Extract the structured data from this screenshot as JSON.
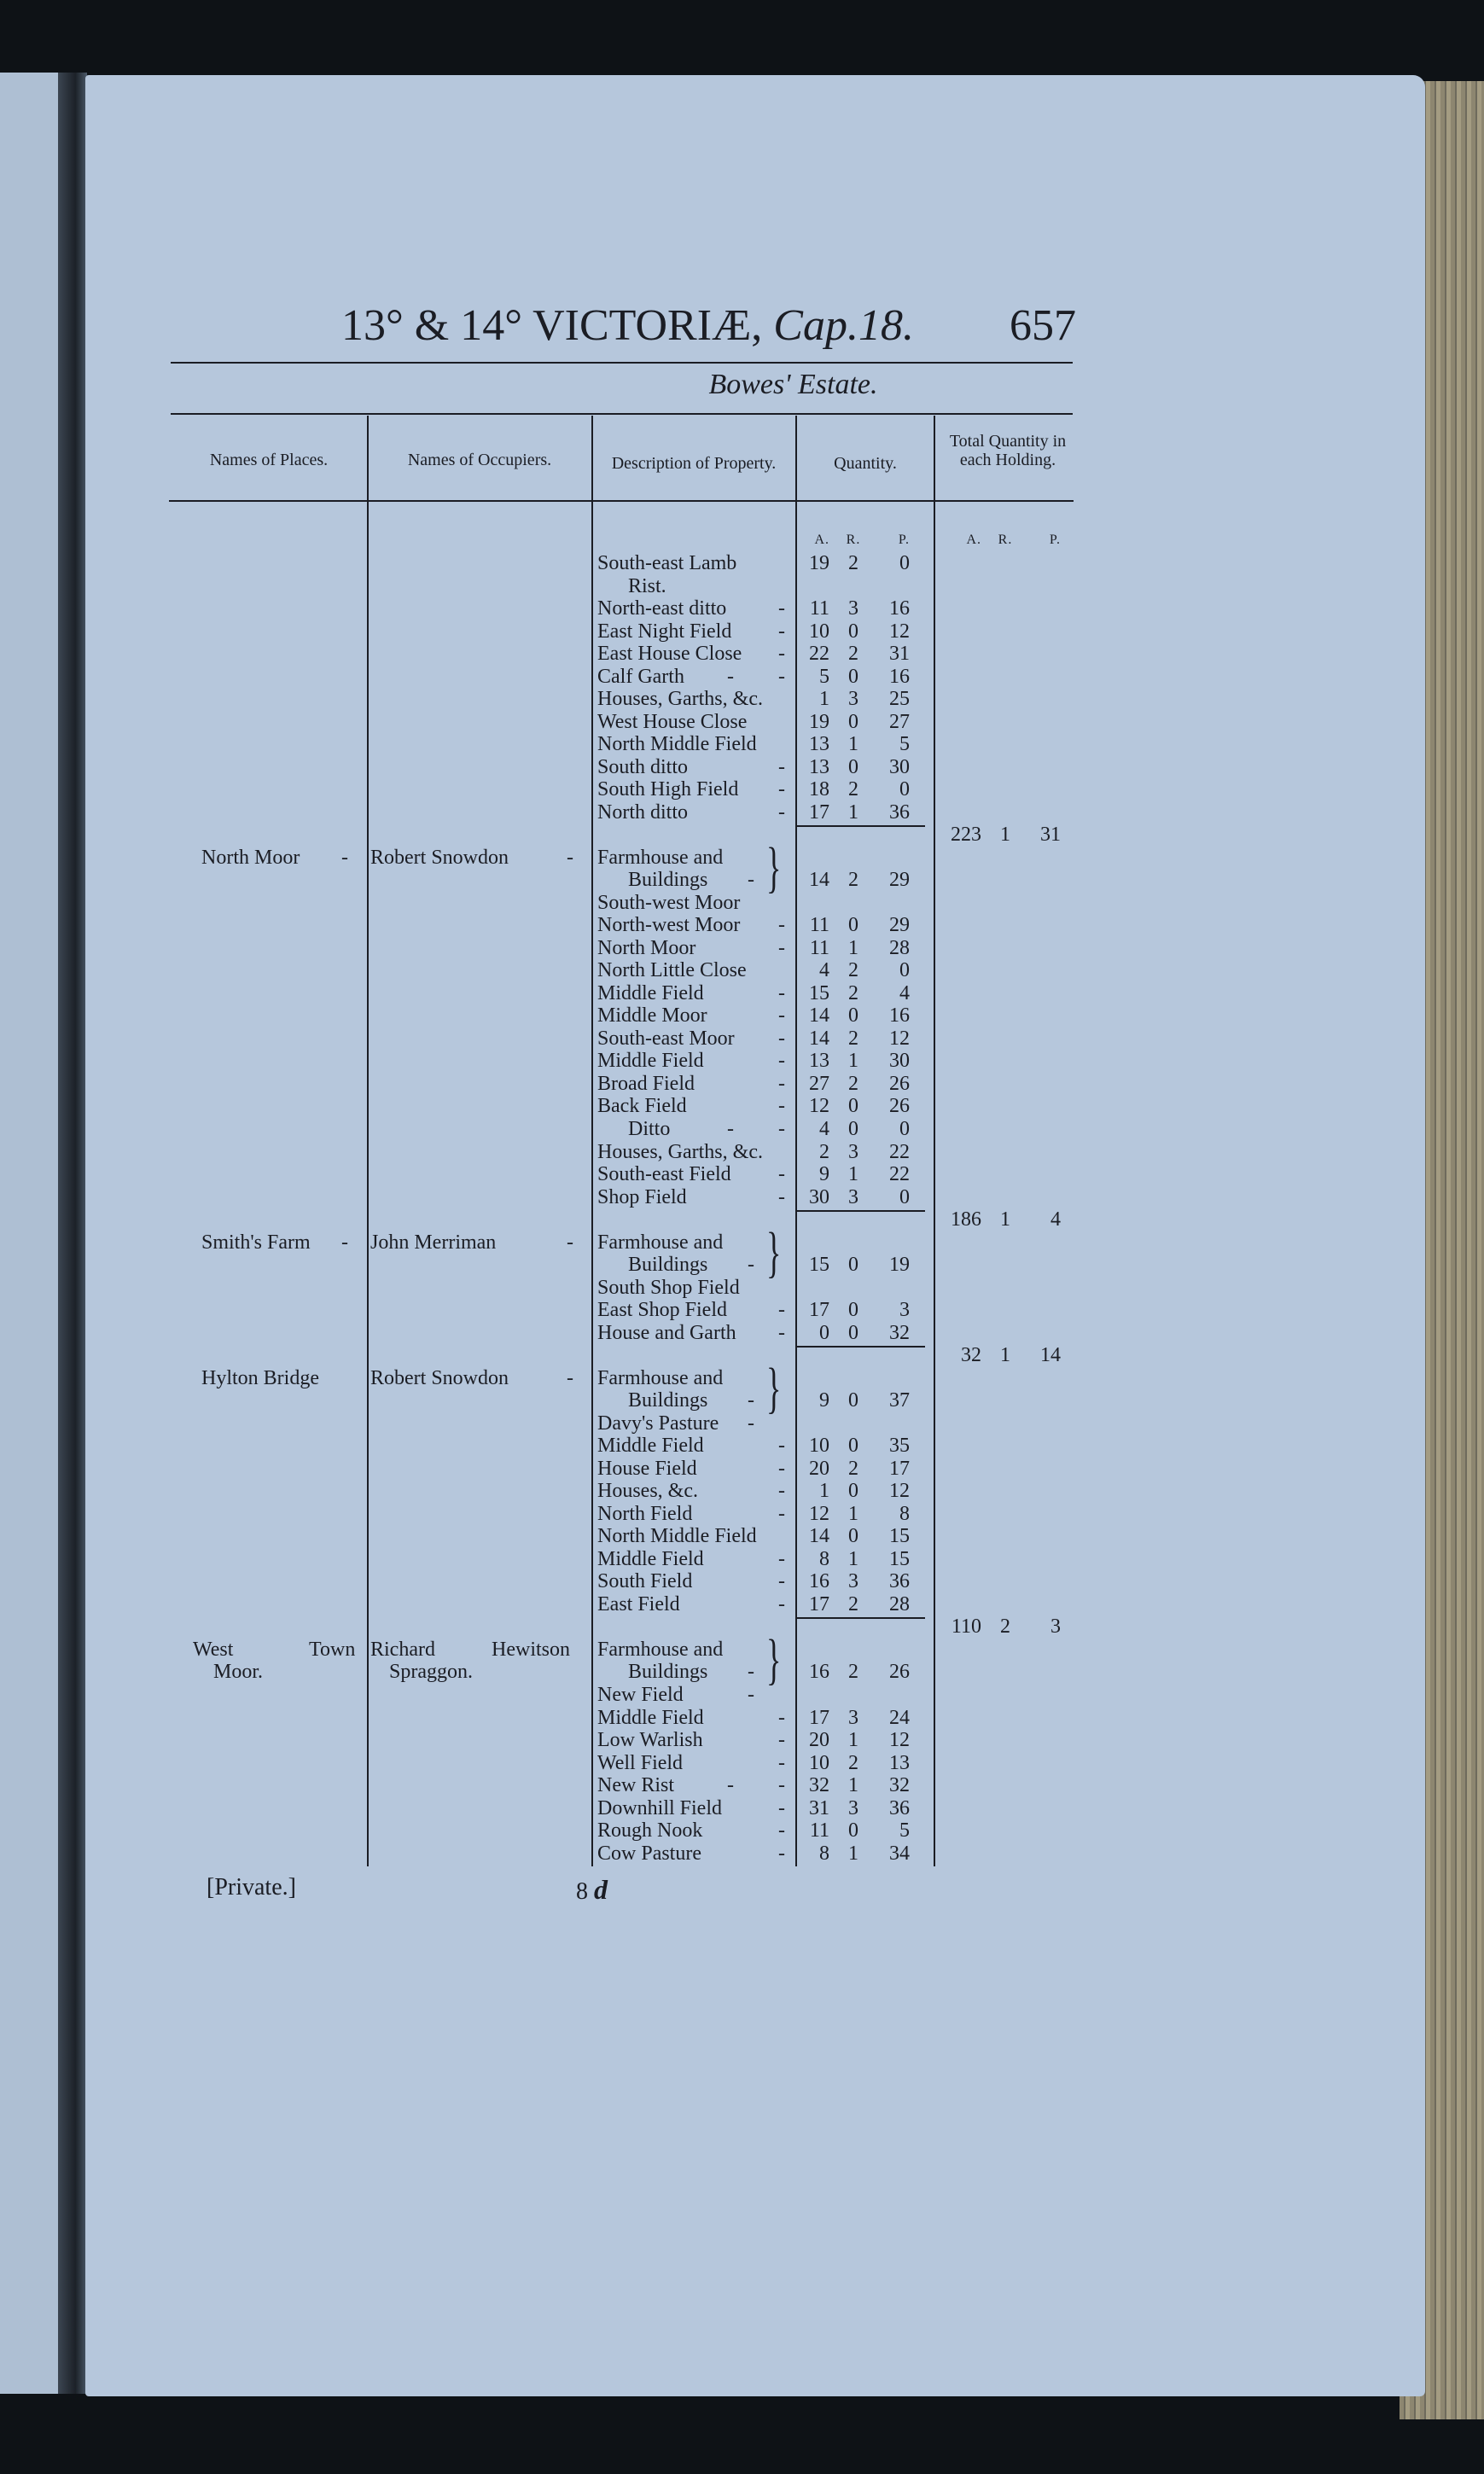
{
  "header": {
    "title_main": "13° & 14° VICTORIÆ,",
    "title_cap": "Cap.18.",
    "page_number": "657"
  },
  "estate": "Bowes' Estate.",
  "columns": {
    "places": "Names of Places.",
    "occupiers": "Names of Occupiers.",
    "description": "Description of Property.",
    "quantity": "Quantity.",
    "total": "Total Quantity in each Holding.",
    "units": [
      "A.",
      "R.",
      "P."
    ]
  },
  "holdings": [
    {
      "place": [],
      "occupier": [],
      "items": [
        {
          "desc": [
            "South-east Lamb",
            "Rist."
          ],
          "a": "19",
          "r": "2",
          "p": "0"
        },
        {
          "desc": [
            "North-east ditto -"
          ],
          "a": "11",
          "r": "3",
          "p": "16"
        },
        {
          "desc": [
            "East Night Field -"
          ],
          "a": "10",
          "r": "0",
          "p": "12"
        },
        {
          "desc": [
            "East House Close -"
          ],
          "a": "22",
          "r": "2",
          "p": "31"
        },
        {
          "desc": [
            "Calf Garth - -"
          ],
          "a": "5",
          "r": "0",
          "p": "16"
        },
        {
          "desc": [
            "Houses, Garths, &c."
          ],
          "a": "1",
          "r": "3",
          "p": "25"
        },
        {
          "desc": [
            "West House Close"
          ],
          "a": "19",
          "r": "0",
          "p": "27"
        },
        {
          "desc": [
            "North Middle Field"
          ],
          "a": "13",
          "r": "1",
          "p": "5"
        },
        {
          "desc": [
            "South ditto -"
          ],
          "a": "13",
          "r": "0",
          "p": "30"
        },
        {
          "desc": [
            "South High Field -"
          ],
          "a": "18",
          "r": "2",
          "p": "0"
        },
        {
          "desc": [
            "North ditto -"
          ],
          "a": "17",
          "r": "1",
          "p": "36"
        }
      ],
      "total": {
        "a": "223",
        "r": "1",
        "p": "31"
      }
    },
    {
      "place": [
        "North Moor -"
      ],
      "occupier": [
        "Robert Snowdon -"
      ],
      "items": [
        {
          "desc": [
            "Farmhouse and",
            "Buildings -",
            "South-west Moor"
          ],
          "bracket": true,
          "a": "14",
          "r": "2",
          "p": "29"
        },
        {
          "desc": [
            "North-west Moor -"
          ],
          "a": "11",
          "r": "0",
          "p": "29"
        },
        {
          "desc": [
            "North Moor -"
          ],
          "a": "11",
          "r": "1",
          "p": "28"
        },
        {
          "desc": [
            "North Little Close"
          ],
          "a": "4",
          "r": "2",
          "p": "0"
        },
        {
          "desc": [
            "Middle Field -"
          ],
          "a": "15",
          "r": "2",
          "p": "4"
        },
        {
          "desc": [
            "Middle Moor -"
          ],
          "a": "14",
          "r": "0",
          "p": "16"
        },
        {
          "desc": [
            "South-east Moor -"
          ],
          "a": "14",
          "r": "2",
          "p": "12"
        },
        {
          "desc": [
            "Middle Field -"
          ],
          "a": "13",
          "r": "1",
          "p": "30"
        },
        {
          "desc": [
            "Broad Field -"
          ],
          "a": "27",
          "r": "2",
          "p": "26"
        },
        {
          "desc": [
            "Back Field -"
          ],
          "a": "12",
          "r": "0",
          "p": "26"
        },
        {
          "desc": [
            "Ditto - -"
          ],
          "indent": true,
          "a": "4",
          "r": "0",
          "p": "0"
        },
        {
          "desc": [
            "Houses, Garths, &c."
          ],
          "a": "2",
          "r": "3",
          "p": "22"
        },
        {
          "desc": [
            "South-east Field -"
          ],
          "a": "9",
          "r": "1",
          "p": "22"
        },
        {
          "desc": [
            "Shop Field -"
          ],
          "a": "30",
          "r": "3",
          "p": "0"
        }
      ],
      "total": {
        "a": "186",
        "r": "1",
        "p": "4"
      }
    },
    {
      "place": [
        "Smith's Farm -"
      ],
      "occupier": [
        "John Merriman -"
      ],
      "items": [
        {
          "desc": [
            "Farmhouse and",
            "Buildings -",
            "South Shop Field"
          ],
          "bracket": true,
          "a": "15",
          "r": "0",
          "p": "19"
        },
        {
          "desc": [
            "East Shop Field -"
          ],
          "a": "17",
          "r": "0",
          "p": "3"
        },
        {
          "desc": [
            "House and Garth -"
          ],
          "a": "0",
          "r": "0",
          "p": "32"
        }
      ],
      "total": {
        "a": "32",
        "r": "1",
        "p": "14"
      }
    },
    {
      "place": [
        "Hylton Bridge"
      ],
      "occupier": [
        "Robert Snowdon -"
      ],
      "items": [
        {
          "desc": [
            "Farmhouse and",
            "Buildings -",
            "Davy's Pasture -"
          ],
          "bracket": true,
          "a": "9",
          "r": "0",
          "p": "37"
        },
        {
          "desc": [
            "Middle Field -"
          ],
          "a": "10",
          "r": "0",
          "p": "35"
        },
        {
          "desc": [
            "House Field -"
          ],
          "a": "20",
          "r": "2",
          "p": "17"
        },
        {
          "desc": [
            "Houses, &c. -"
          ],
          "a": "1",
          "r": "0",
          "p": "12"
        },
        {
          "desc": [
            "North Field -"
          ],
          "a": "12",
          "r": "1",
          "p": "8"
        },
        {
          "desc": [
            "North Middle Field"
          ],
          "a": "14",
          "r": "0",
          "p": "15"
        },
        {
          "desc": [
            "Middle Field -"
          ],
          "a": "8",
          "r": "1",
          "p": "15"
        },
        {
          "desc": [
            "South Field -"
          ],
          "a": "16",
          "r": "3",
          "p": "36"
        },
        {
          "desc": [
            "East Field -"
          ],
          "a": "17",
          "r": "2",
          "p": "28"
        }
      ],
      "total": {
        "a": "110",
        "r": "2",
        "p": "3"
      }
    },
    {
      "place": [
        "West Town",
        "Moor."
      ],
      "occupier": [
        "Richard Hewitson",
        "Spraggon."
      ],
      "items": [
        {
          "desc": [
            "Farmhouse and",
            "Buildings -",
            "New Field -"
          ],
          "bracket": true,
          "a": "16",
          "r": "2",
          "p": "26"
        },
        {
          "desc": [
            "Middle Field -"
          ],
          "a": "17",
          "r": "3",
          "p": "24"
        },
        {
          "desc": [
            "Low Warlish -"
          ],
          "a": "20",
          "r": "1",
          "p": "12"
        },
        {
          "desc": [
            "Well Field -"
          ],
          "a": "10",
          "r": "2",
          "p": "13"
        },
        {
          "desc": [
            "New Rist - -"
          ],
          "a": "32",
          "r": "1",
          "p": "32"
        },
        {
          "desc": [
            "Downhill Field -"
          ],
          "a": "31",
          "r": "3",
          "p": "36"
        },
        {
          "desc": [
            "Rough Nook -"
          ],
          "a": "11",
          "r": "0",
          "p": "5"
        },
        {
          "desc": [
            "Cow Pasture -"
          ],
          "a": "8",
          "r": "1",
          "p": "34"
        }
      ],
      "total": null
    }
  ],
  "footer": {
    "private": "[Private.]",
    "signature": "8",
    "signature_letter": "d"
  }
}
